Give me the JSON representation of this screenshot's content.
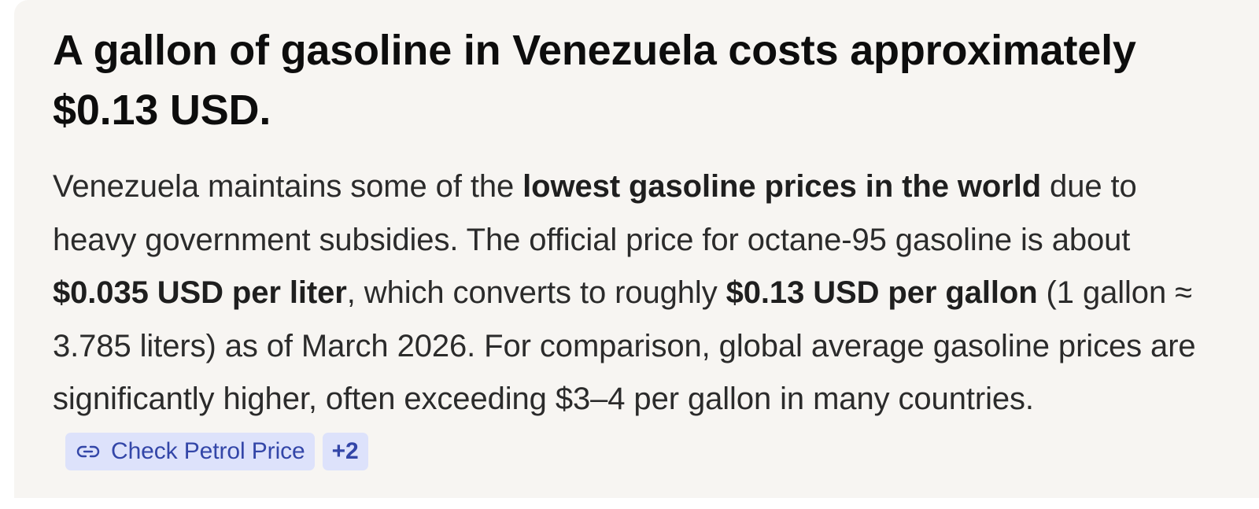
{
  "answer": {
    "headline": "A gallon of gasoline in Venezuela costs approximately $0.13 USD.",
    "body": {
      "seg1": "Venezuela maintains some of the ",
      "bold1": "lowest gasoline prices in the world",
      "seg2": " due to heavy government subsidies. The official price for octane-95 gasoline is about ",
      "bold2": "$0.035 USD per liter",
      "seg3": ", which converts to roughly ",
      "bold3": "$0.13 USD per gallon",
      "seg4": " (1 gallon ≈ 3.785 liters) as of March 2026. For comparison, global average gasoline prices are significantly higher, often exceeding $3–4 per gallon in many countries."
    },
    "sources": {
      "primary_label": "Check Petrol Price",
      "more_label": "+2",
      "icon": "link-icon"
    }
  },
  "colors": {
    "card_background": "#f7f5f2",
    "chip_background": "#dde2fb",
    "chip_text": "#3346a8"
  }
}
